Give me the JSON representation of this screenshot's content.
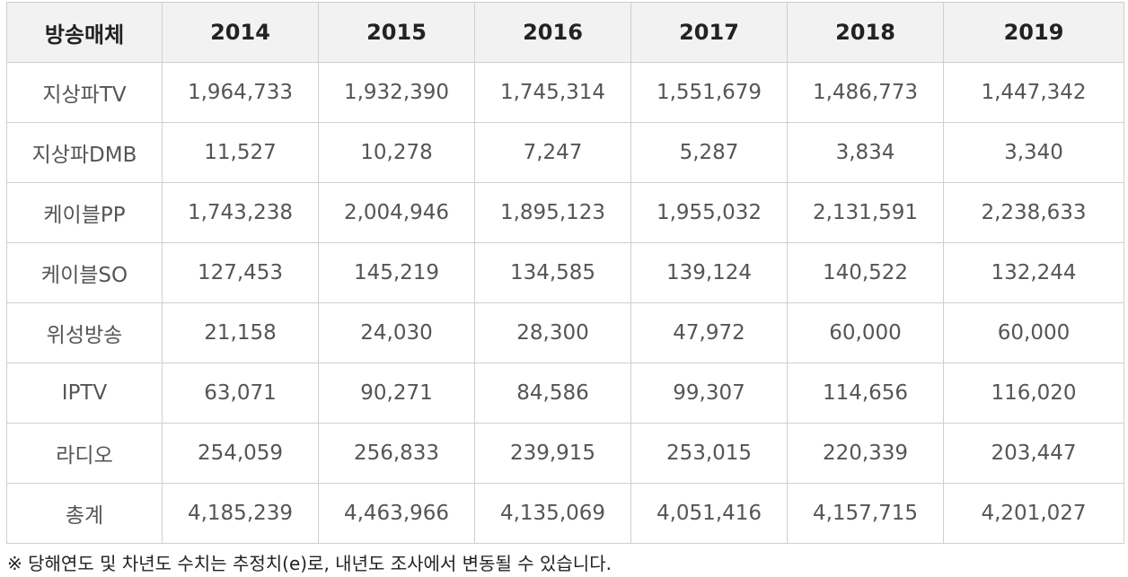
{
  "table": {
    "header": [
      "방송매체",
      "2014",
      "2015",
      "2016",
      "2017",
      "2018",
      "2019"
    ],
    "rows": [
      [
        "지상파TV",
        "1,964,733",
        "1,932,390",
        "1,745,314",
        "1,551,679",
        "1,486,773",
        "1,447,342"
      ],
      [
        "지상파DMB",
        "11,527",
        "10,278",
        "7,247",
        "5,287",
        "3,834",
        "3,340"
      ],
      [
        "케이블PP",
        "1,743,238",
        "2,004,946",
        "1,895,123",
        "1,955,032",
        "2,131,591",
        "2,238,633"
      ],
      [
        "케이블SO",
        "127,453",
        "145,219",
        "134,585",
        "139,124",
        "140,522",
        "132,244"
      ],
      [
        "위성방송",
        "21,158",
        "24,030",
        "28,300",
        "47,972",
        "60,000",
        "60,000"
      ],
      [
        "IPTV",
        "63,071",
        "90,271",
        "84,586",
        "99,307",
        "114,656",
        "116,020"
      ],
      [
        "라디오",
        "254,059",
        "256,833",
        "239,915",
        "253,015",
        "220,339",
        "203,447"
      ],
      [
        "총계",
        "4,185,239",
        "4,463,966",
        "4,135,069",
        "4,051,416",
        "4,157,715",
        "4,201,027"
      ]
    ]
  },
  "footnote": "※ 당해연도 및 차년도 수치는 추정치(e)로, 내년도 조사에서 변동될 수 있습니다."
}
